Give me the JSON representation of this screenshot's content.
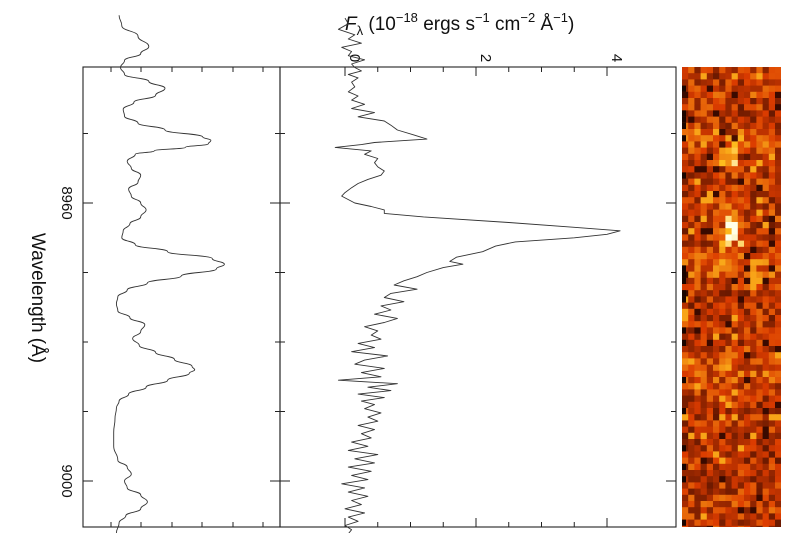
{
  "chart_data": {
    "type": "line",
    "orientation": "rotated",
    "flux_axis_label": {
      "symbol": "F",
      "subscript": "λ",
      "units_open": " (10",
      "exp1": "−18",
      "units_mid1": " ergs s",
      "exp2": "−1",
      "units_mid2": " cm",
      "exp3": "−2",
      "units_mid3": " Å",
      "exp4": "−1",
      "units_close": ")"
    },
    "wavelength_axis_label": "Wavelength  (Å)",
    "wavelength_range": [
      8933,
      9020
    ],
    "wavelength_ticks": [
      8960,
      9000
    ],
    "wavelength_tick_labels": [
      "8960",
      "9000"
    ],
    "flux_range": [
      -0.1,
      4.5
    ],
    "flux_ticks": [
      0,
      2,
      4
    ],
    "flux_tick_labels": [
      "0",
      "2",
      "4"
    ],
    "grid": false,
    "series": [
      {
        "values": [
          [
            8933.4,
            0.0
          ],
          [
            8934.2,
            0.05
          ],
          [
            8935.0,
            -0.1
          ],
          [
            8935.8,
            0.15
          ],
          [
            8936.4,
            0.05
          ],
          [
            8937.0,
            0.25
          ],
          [
            8937.6,
            -0.05
          ],
          [
            8938.2,
            0.1
          ],
          [
            8938.8,
            0.05
          ],
          [
            8939.4,
            0.3
          ],
          [
            8940.0,
            0.1
          ],
          [
            8940.5,
            0.15
          ],
          [
            8941.0,
            0.25
          ],
          [
            8941.5,
            0.05
          ],
          [
            8942.0,
            0.2
          ],
          [
            8942.6,
            0.1
          ],
          [
            8943.3,
            0.15
          ],
          [
            8944.0,
            0.05
          ],
          [
            8944.6,
            0.2
          ],
          [
            8945.2,
            0.1
          ],
          [
            8945.8,
            0.3
          ],
          [
            8946.4,
            0.1
          ],
          [
            8947.0,
            0.45
          ],
          [
            8947.6,
            0.2
          ],
          [
            8948.2,
            0.6
          ],
          [
            8948.8,
            0.7
          ],
          [
            8949.5,
            0.8
          ],
          [
            8950.2,
            1.05
          ],
          [
            8950.8,
            1.25
          ],
          [
            8951.3,
            0.45
          ],
          [
            8951.6,
            0.25
          ],
          [
            8952.0,
            -0.15
          ],
          [
            8952.5,
            0.4
          ],
          [
            8953.0,
            0.3
          ],
          [
            8953.6,
            0.5
          ],
          [
            8954.2,
            0.45
          ],
          [
            8954.8,
            0.5
          ],
          [
            8955.4,
            0.6
          ],
          [
            8956.0,
            0.55
          ],
          [
            8956.6,
            0.35
          ],
          [
            8957.2,
            0.2
          ],
          [
            8957.8,
            0.1
          ],
          [
            8958.5,
            0.0
          ],
          [
            8959.0,
            -0.05
          ],
          [
            8960.0,
            0.15
          ],
          [
            8960.5,
            0.4
          ],
          [
            8961.0,
            0.6
          ],
          [
            8961.5,
            0.6
          ],
          [
            8962.0,
            1.2
          ],
          [
            8962.8,
            2.5
          ],
          [
            8963.5,
            3.5
          ],
          [
            8964.0,
            4.2
          ],
          [
            8964.5,
            4.0
          ],
          [
            8965.0,
            3.5
          ],
          [
            8965.6,
            2.6
          ],
          [
            8966.2,
            2.3
          ],
          [
            8967.0,
            2.1
          ],
          [
            8967.8,
            1.7
          ],
          [
            8968.4,
            1.6
          ],
          [
            8968.8,
            1.8
          ],
          [
            8969.3,
            1.5
          ],
          [
            8970.0,
            1.25
          ],
          [
            8970.6,
            1.1
          ],
          [
            8971.2,
            0.9
          ],
          [
            8971.8,
            0.75
          ],
          [
            8972.4,
            1.1
          ],
          [
            8973.0,
            0.7
          ],
          [
            8973.6,
            0.6
          ],
          [
            8974.2,
            0.9
          ],
          [
            8974.8,
            0.55
          ],
          [
            8975.4,
            0.7
          ],
          [
            8976.0,
            0.45
          ],
          [
            8976.6,
            0.8
          ],
          [
            8977.2,
            0.6
          ],
          [
            8977.8,
            0.3
          ],
          [
            8978.4,
            0.5
          ],
          [
            8979.0,
            0.4
          ],
          [
            8979.6,
            0.55
          ],
          [
            8980.2,
            0.2
          ],
          [
            8980.8,
            0.45
          ],
          [
            8981.4,
            0.1
          ],
          [
            8982.0,
            0.65
          ],
          [
            8982.6,
            0.3
          ],
          [
            8983.2,
            0.15
          ],
          [
            8983.8,
            0.6
          ],
          [
            8984.4,
            0.25
          ],
          [
            8985.0,
            0.55
          ],
          [
            8985.5,
            -0.1
          ],
          [
            8986.0,
            0.8
          ],
          [
            8986.5,
            0.35
          ],
          [
            8987.0,
            0.7
          ],
          [
            8987.5,
            0.2
          ],
          [
            8988.0,
            0.6
          ],
          [
            8988.5,
            0.25
          ],
          [
            8989.0,
            0.45
          ],
          [
            8989.6,
            0.3
          ],
          [
            8990.2,
            0.55
          ],
          [
            8990.8,
            0.35
          ],
          [
            8991.4,
            0.5
          ],
          [
            8992.0,
            0.2
          ],
          [
            8992.6,
            0.45
          ],
          [
            8993.2,
            0.25
          ],
          [
            8993.8,
            0.4
          ],
          [
            8994.4,
            0.1
          ],
          [
            8995.0,
            0.35
          ],
          [
            8995.6,
            0.05
          ],
          [
            8996.2,
            0.5
          ],
          [
            8996.8,
            0.15
          ],
          [
            8997.4,
            0.45
          ],
          [
            8998.0,
            0.05
          ],
          [
            8998.6,
            0.4
          ],
          [
            8999.2,
            0.1
          ],
          [
            8999.8,
            0.35
          ],
          [
            9000.4,
            -0.05
          ],
          [
            9001.0,
            0.3
          ],
          [
            9001.6,
            0.05
          ],
          [
            9002.2,
            0.35
          ],
          [
            9002.8,
            0.1
          ],
          [
            9003.4,
            0.25
          ],
          [
            9004.0,
            0.0
          ],
          [
            9004.6,
            0.3
          ],
          [
            9005.2,
            0.05
          ],
          [
            9005.8,
            0.2
          ],
          [
            9006.4,
            0.0
          ],
          [
            9007.0,
            0.1
          ],
          [
            9007.6,
            0.05
          ],
          [
            9008.2,
            0.15
          ],
          [
            9008.8,
            0.05
          ],
          [
            9009.4,
            0.1
          ],
          [
            9010.0,
            0.05
          ],
          [
            9010.6,
            0.12
          ],
          [
            9011.2,
            0.05
          ]
        ]
      }
    ],
    "sky_panel": {
      "values": [
        [
          8933.0,
          0.06
        ],
        [
          8934.5,
          0.08
        ],
        [
          8936.0,
          0.2
        ],
        [
          8937.5,
          0.28
        ],
        [
          8938.5,
          0.22
        ],
        [
          8939.5,
          0.1
        ],
        [
          8940.5,
          0.07
        ],
        [
          8941.5,
          0.1
        ],
        [
          8942.5,
          0.28
        ],
        [
          8943.5,
          0.4
        ],
        [
          8944.5,
          0.33
        ],
        [
          8945.5,
          0.17
        ],
        [
          8946.5,
          0.09
        ],
        [
          8947.5,
          0.1
        ],
        [
          8948.5,
          0.2
        ],
        [
          8949.5,
          0.4
        ],
        [
          8950.5,
          0.68
        ],
        [
          8951.0,
          0.74
        ],
        [
          8951.5,
          0.72
        ],
        [
          8952.0,
          0.55
        ],
        [
          8952.5,
          0.32
        ],
        [
          8953.0,
          0.18
        ],
        [
          8954.0,
          0.12
        ],
        [
          8955.0,
          0.15
        ],
        [
          8956.0,
          0.22
        ],
        [
          8957.0,
          0.2
        ],
        [
          8958.0,
          0.13
        ],
        [
          8959.0,
          0.15
        ],
        [
          8960.0,
          0.22
        ],
        [
          8961.0,
          0.26
        ],
        [
          8962.0,
          0.22
        ],
        [
          8963.0,
          0.14
        ],
        [
          8964.0,
          0.09
        ],
        [
          8965.0,
          0.08
        ],
        [
          8966.0,
          0.18
        ],
        [
          8967.0,
          0.42
        ],
        [
          8968.0,
          0.75
        ],
        [
          8968.8,
          0.84
        ],
        [
          8969.5,
          0.78
        ],
        [
          8970.5,
          0.52
        ],
        [
          8971.5,
          0.27
        ],
        [
          8972.5,
          0.12
        ],
        [
          8973.5,
          0.05
        ],
        [
          8974.5,
          0.04
        ],
        [
          8975.5,
          0.05
        ],
        [
          8976.5,
          0.14
        ],
        [
          8977.5,
          0.25
        ],
        [
          8978.5,
          0.22
        ],
        [
          8979.5,
          0.16
        ],
        [
          8980.5,
          0.21
        ],
        [
          8981.5,
          0.33
        ],
        [
          8982.5,
          0.47
        ],
        [
          8983.5,
          0.6
        ],
        [
          8984.0,
          0.62
        ],
        [
          8984.5,
          0.58
        ],
        [
          8985.5,
          0.42
        ],
        [
          8986.5,
          0.26
        ],
        [
          8987.5,
          0.13
        ],
        [
          8988.5,
          0.06
        ],
        [
          8989.5,
          0.04
        ],
        [
          8991.0,
          0.03
        ],
        [
          8993.0,
          0.02
        ],
        [
          8995.0,
          0.02
        ],
        [
          8997.0,
          0.05
        ],
        [
          8998.0,
          0.12
        ],
        [
          8999.0,
          0.15
        ],
        [
          9000.0,
          0.1
        ],
        [
          9001.0,
          0.12
        ],
        [
          9002.0,
          0.22
        ],
        [
          9003.0,
          0.27
        ],
        [
          9004.0,
          0.22
        ],
        [
          9005.0,
          0.11
        ],
        [
          9006.0,
          0.06
        ],
        [
          9007.5,
          0.04
        ],
        [
          9009.0,
          0.03
        ],
        [
          9011.0,
          0.03
        ]
      ]
    },
    "image_panel": {
      "blob_wavelength": 8964
    }
  }
}
